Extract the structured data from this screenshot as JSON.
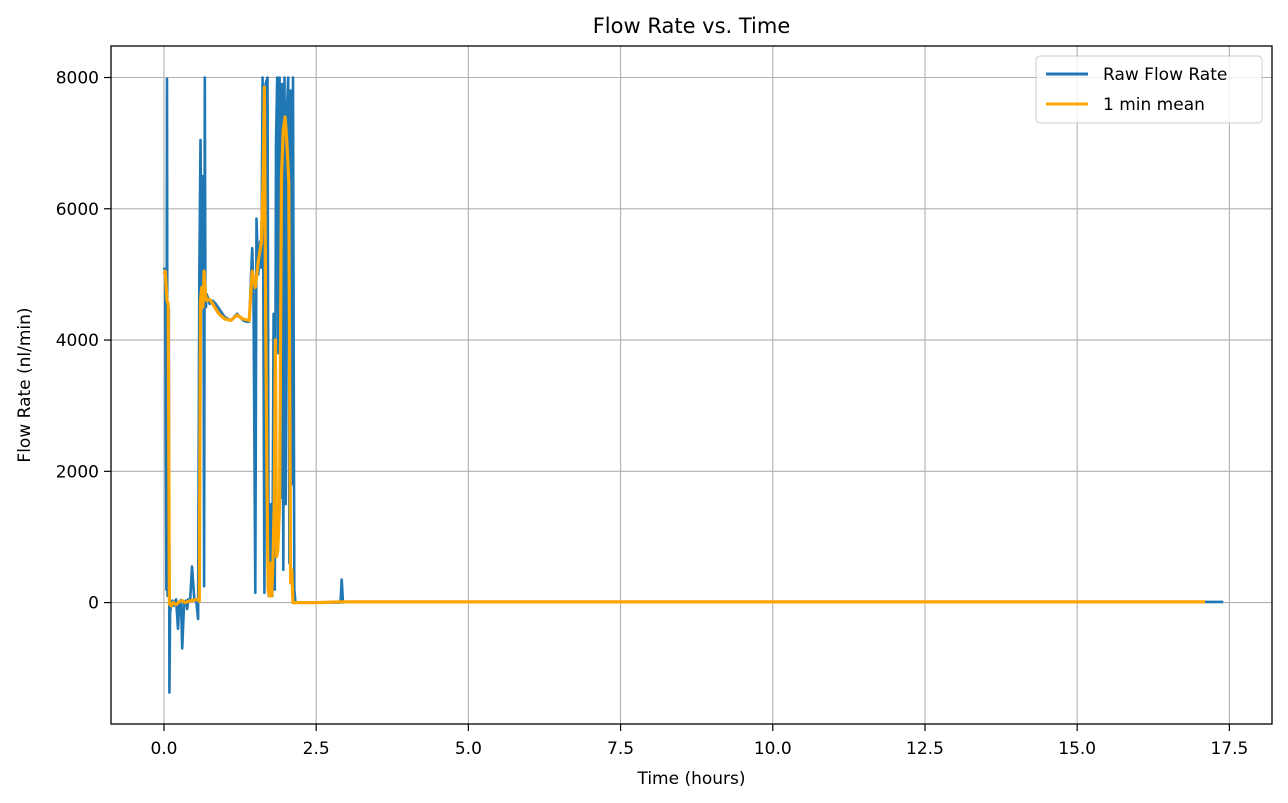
{
  "chart_data": {
    "type": "line",
    "title": "Flow Rate vs. Time",
    "xlabel": "Time (hours)",
    "ylabel": "Flow Rate (nl/min)",
    "xlim": [
      -0.87,
      18.2
    ],
    "ylim": [
      -1850,
      8480
    ],
    "xticks": [
      0,
      2.5,
      5,
      7.5,
      10,
      12.5,
      15,
      17.5
    ],
    "xtick_labels": [
      "0.0",
      "2.5",
      "5.0",
      "7.5",
      "10.0",
      "12.5",
      "15.0",
      "17.5"
    ],
    "yticks": [
      0,
      2000,
      4000,
      6000,
      8000
    ],
    "ytick_labels": [
      "0",
      "2000",
      "4000",
      "6000",
      "8000"
    ],
    "grid": true,
    "legend_position": "top-right",
    "series": [
      {
        "name": "Raw Flow Rate",
        "color": "#1f77b4",
        "x": [
          0.0,
          0.02,
          0.04,
          0.05,
          0.06,
          0.07,
          0.08,
          0.09,
          0.1,
          0.12,
          0.14,
          0.16,
          0.18,
          0.2,
          0.23,
          0.25,
          0.28,
          0.3,
          0.33,
          0.36,
          0.38,
          0.4,
          0.43,
          0.46,
          0.5,
          0.53,
          0.56,
          0.58,
          0.6,
          0.62,
          0.63,
          0.64,
          0.65,
          0.66,
          0.67,
          0.68,
          0.69,
          0.7,
          0.72,
          0.75,
          0.8,
          0.85,
          0.9,
          1.0,
          1.1,
          1.2,
          1.3,
          1.35,
          1.4,
          1.45,
          1.47,
          1.5,
          1.52,
          1.55,
          1.58,
          1.6,
          1.62,
          1.65,
          1.67,
          1.7,
          1.72,
          1.74,
          1.76,
          1.78,
          1.8,
          1.82,
          1.84,
          1.86,
          1.88,
          1.9,
          1.92,
          1.94,
          1.96,
          1.98,
          2.0,
          2.02,
          2.04,
          2.06,
          2.08,
          2.1,
          2.12,
          2.14,
          2.16,
          2.2,
          2.5,
          2.8,
          2.9,
          2.92,
          2.94,
          3.0,
          5.0,
          10.0,
          15.0,
          17.0,
          17.4
        ],
        "y": [
          5100,
          5050,
          200,
          7980,
          100,
          4500,
          4480,
          -1370,
          -150,
          -20,
          30,
          -50,
          0,
          50,
          -400,
          -20,
          40,
          -700,
          0,
          30,
          -100,
          50,
          20,
          550,
          30,
          40,
          -250,
          4900,
          7050,
          4600,
          6500,
          4700,
          5200,
          250,
          8000,
          4600,
          4500,
          4700,
          4650,
          4550,
          4600,
          4550,
          4480,
          4350,
          4300,
          4400,
          4300,
          4280,
          4280,
          5400,
          4700,
          150,
          5850,
          5000,
          5500,
          5100,
          8000,
          150,
          7900,
          8000,
          100,
          300,
          1500,
          100,
          4400,
          200,
          7000,
          8000,
          3800,
          8000,
          1600,
          7900,
          500,
          8000,
          1500,
          7500,
          8000,
          600,
          7800,
          1800,
          8000,
          200,
          0,
          0,
          0,
          0,
          0,
          350,
          0,
          10,
          10,
          10,
          10,
          10,
          10
        ]
      },
      {
        "name": "1 min mean",
        "color": "#ffa500",
        "x": [
          0.0,
          0.02,
          0.05,
          0.07,
          0.09,
          0.12,
          0.15,
          0.2,
          0.25,
          0.3,
          0.35,
          0.4,
          0.45,
          0.5,
          0.55,
          0.58,
          0.6,
          0.62,
          0.64,
          0.66,
          0.68,
          0.7,
          0.75,
          0.8,
          0.9,
          1.0,
          1.1,
          1.2,
          1.3,
          1.4,
          1.45,
          1.5,
          1.55,
          1.6,
          1.63,
          1.65,
          1.67,
          1.69,
          1.71,
          1.73,
          1.75,
          1.77,
          1.79,
          1.81,
          1.83,
          1.85,
          1.87,
          1.9,
          1.93,
          1.96,
          1.99,
          2.02,
          2.05,
          2.08,
          2.1,
          2.12,
          2.15,
          2.5,
          2.9,
          5.0,
          10.0,
          15.0,
          17.1
        ],
        "y": [
          5000,
          5050,
          4600,
          4550,
          -20,
          -50,
          0,
          -30,
          10,
          30,
          0,
          20,
          30,
          40,
          50,
          20,
          4600,
          4800,
          4500,
          5050,
          4700,
          4600,
          4620,
          4550,
          4400,
          4320,
          4300,
          4380,
          4320,
          4300,
          5050,
          4800,
          5200,
          5500,
          6500,
          7850,
          4500,
          2000,
          200,
          100,
          600,
          100,
          600,
          1500,
          4000,
          700,
          800,
          1500,
          6500,
          7200,
          7400,
          7000,
          6400,
          300,
          500,
          0,
          0,
          0,
          10,
          10,
          10,
          10,
          10
        ]
      }
    ]
  }
}
